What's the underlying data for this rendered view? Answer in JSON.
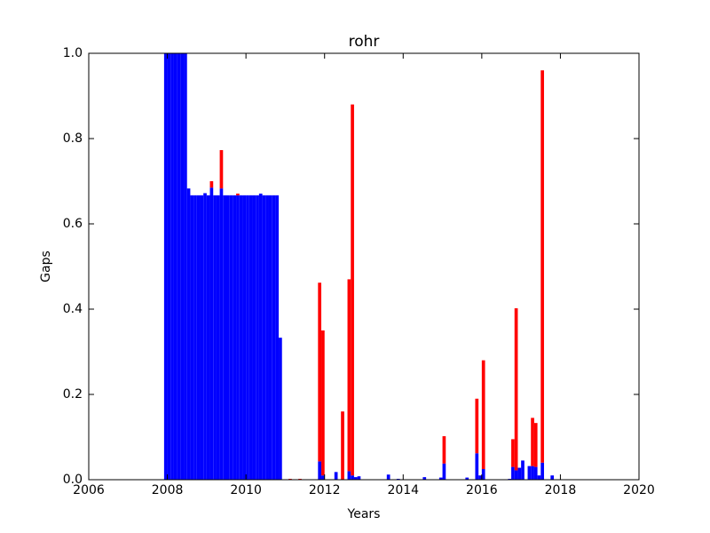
{
  "chart_data": {
    "type": "stacked_bar",
    "title": "rohr",
    "x_label": "Years",
    "y_label": "Gaps",
    "x": [
      2007.917,
      2008,
      2008.083,
      2008.167,
      2008.25,
      2008.333,
      2008.417,
      2008.5,
      2008.583,
      2008.667,
      2008.75,
      2008.833,
      2008.917,
      2009,
      2009.083,
      2009.167,
      2009.25,
      2009.333,
      2009.417,
      2009.5,
      2009.583,
      2009.667,
      2009.75,
      2009.833,
      2009.917,
      2010,
      2010.083,
      2010.167,
      2010.25,
      2010.333,
      2010.417,
      2010.5,
      2010.583,
      2010.667,
      2010.75,
      2010.833,
      2011.083,
      2011.333,
      2011.833,
      2011.917,
      2012.25,
      2012.417,
      2012.583,
      2012.667,
      2012.75,
      2012.833,
      2013.583,
      2013.833,
      2014.5,
      2014.917,
      2015,
      2015.583,
      2015.833,
      2015.917,
      2016,
      2016.667,
      2016.75,
      2016.833,
      2016.917,
      2017,
      2017.167,
      2017.25,
      2017.333,
      2017.417,
      2017.5,
      2017.75
    ],
    "series": [
      {
        "name": "blue",
        "color": "#0000ff",
        "values": [
          1,
          1,
          1,
          1,
          1,
          1,
          1,
          0.683,
          0.667,
          0.667,
          0.667,
          0.667,
          0.672,
          0.667,
          0.685,
          0.667,
          0.667,
          0.683,
          0.667,
          0.667,
          0.667,
          0.667,
          0.667,
          0.667,
          0.667,
          0.667,
          0.667,
          0.667,
          0.667,
          0.671,
          0.667,
          0.667,
          0.667,
          0.667,
          0.667,
          0.333,
          0,
          0,
          0.043,
          0.01,
          0.018,
          0,
          0.02,
          0.01,
          0.006,
          0.008,
          0.012,
          0.002,
          0.006,
          0.005,
          0.038,
          0.005,
          0.062,
          0.01,
          0.025,
          0.002,
          0.03,
          0.022,
          0.028,
          0.045,
          0.032,
          0.032,
          0.03,
          0.01,
          0.04,
          0.01
        ]
      },
      {
        "name": "red",
        "color": "#ff0000",
        "values": [
          0,
          0,
          0,
          0,
          0,
          0,
          0,
          0,
          0,
          0,
          0,
          0,
          0,
          0,
          0.015,
          0,
          0,
          0.09,
          0,
          0,
          0,
          0,
          0.004,
          0,
          0,
          0,
          0,
          0,
          0,
          0,
          0,
          0,
          0,
          0,
          0,
          0,
          0.002,
          0.002,
          0.419,
          0.34,
          0,
          0.16,
          0.45,
          0.87,
          0,
          0,
          0,
          0,
          0,
          0,
          0.064,
          0,
          0.128,
          0,
          0.255,
          0,
          0.065,
          0.38,
          0,
          0,
          0,
          0.113,
          0.103,
          0,
          0.92,
          0
        ]
      }
    ],
    "xlim": [
      2006,
      2020
    ],
    "xticks": [
      2006,
      2008,
      2010,
      2012,
      2014,
      2016,
      2018,
      2020
    ],
    "ylim": [
      0,
      1
    ],
    "yticks": [
      {
        "value": 0,
        "label": "0.0"
      },
      0.2,
      0.4,
      0.6,
      0.8,
      {
        "value": 1,
        "label": "1.0"
      }
    ]
  }
}
